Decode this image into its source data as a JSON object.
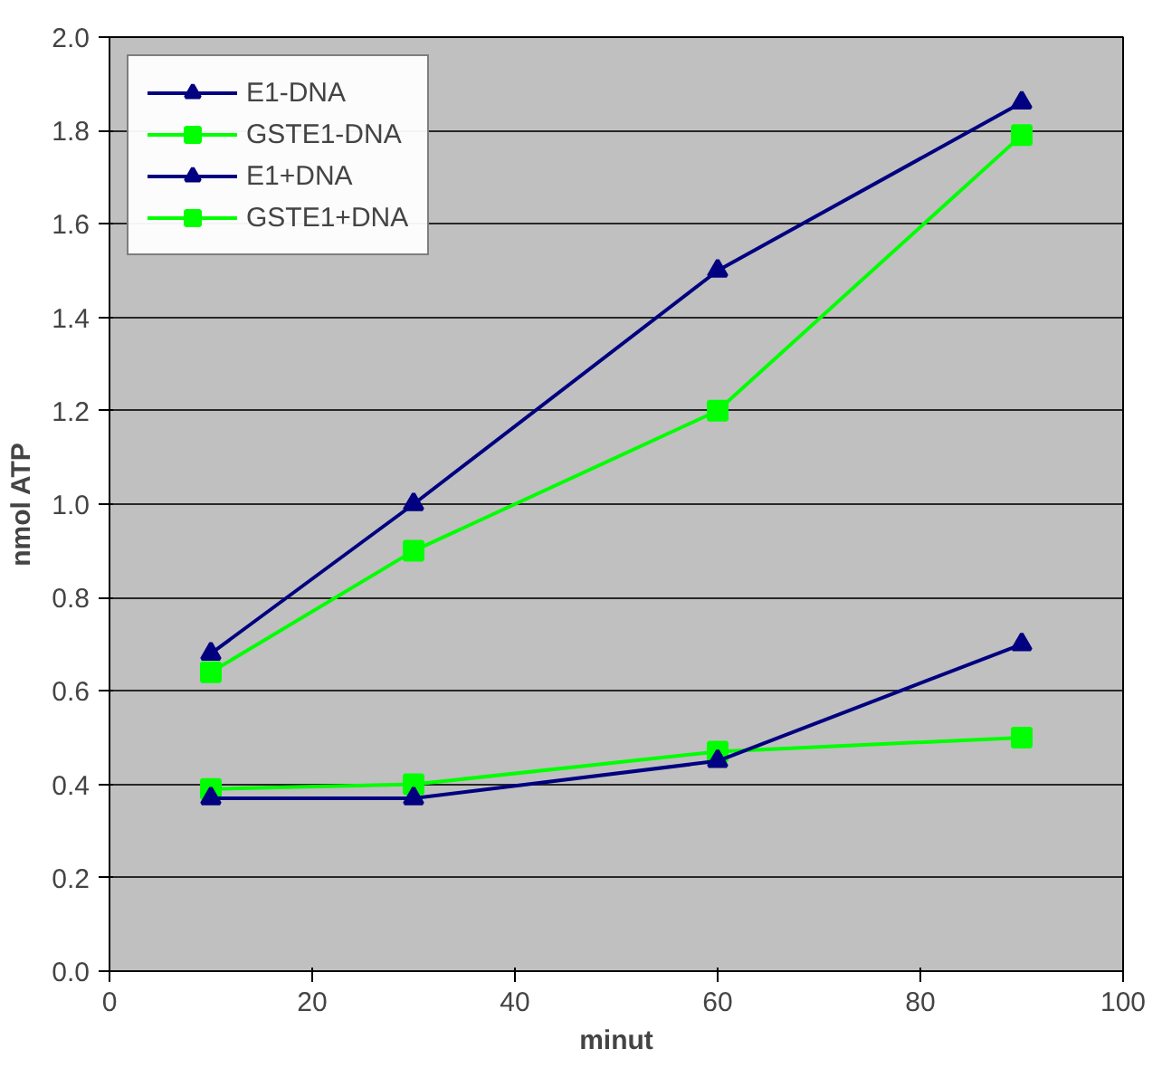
{
  "chart_data": {
    "type": "line",
    "xlabel": "minut",
    "ylabel": "nmol ATP",
    "xlim": [
      0,
      100
    ],
    "xticks": [
      0,
      20,
      40,
      60,
      80,
      100
    ],
    "ylim": [
      0,
      2
    ],
    "yticks": [
      {
        "value": 0,
        "label": "0.0"
      },
      {
        "value": 0.2,
        "label": "0.2"
      },
      {
        "value": 0.4,
        "label": "0.4"
      },
      {
        "value": 0.6,
        "label": "0.6"
      },
      {
        "value": 0.8,
        "label": "0.8"
      },
      {
        "value": 1.0,
        "label": "1.0"
      },
      {
        "value": 1.2,
        "label": "1.2"
      },
      {
        "value": 1.4,
        "label": "1.4"
      },
      {
        "value": 1.6,
        "label": "1.6"
      },
      {
        "value": 1.8,
        "label": "1.8"
      },
      {
        "value": 2.0,
        "label": "2.0"
      }
    ],
    "x": [
      10,
      30,
      60,
      90
    ],
    "grid": "y",
    "legend": "top left",
    "line_style": "solid",
    "series": [
      {
        "name": "E1-DNA",
        "color": "#000080",
        "marker": "triangle",
        "values": [
          0.37,
          0.37,
          0.45,
          0.7
        ]
      },
      {
        "name": "GSTE1-DNA",
        "color": "#00ff00",
        "marker": "square",
        "values": [
          0.39,
          0.4,
          0.47,
          0.5
        ]
      },
      {
        "name": "E1+DNA",
        "color": "#000080",
        "marker": "triangle",
        "values": [
          0.68,
          1.0,
          1.5,
          1.86
        ]
      },
      {
        "name": "GSTE1+DNA",
        "color": "#00ff00",
        "marker": "square",
        "values": [
          0.64,
          0.9,
          1.2,
          1.79
        ]
      }
    ]
  }
}
